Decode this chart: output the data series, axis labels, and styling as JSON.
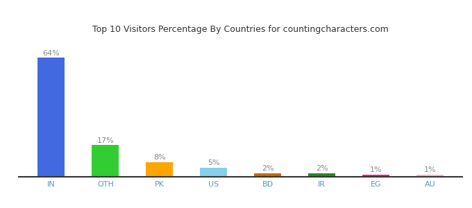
{
  "categories": [
    "IN",
    "OTH",
    "PK",
    "US",
    "BD",
    "IR",
    "EG",
    "AU"
  ],
  "values": [
    64,
    17,
    8,
    5,
    2,
    2,
    1,
    1
  ],
  "labels": [
    "64%",
    "17%",
    "8%",
    "5%",
    "2%",
    "2%",
    "1%",
    "1%"
  ],
  "bar_colors": [
    "#4169e1",
    "#32cd32",
    "#ffa500",
    "#87ceeb",
    "#cd6600",
    "#228b22",
    "#ff1493",
    "#ffb6c1"
  ],
  "title": "Top 10 Visitors Percentage By Countries for countingcharacters.com",
  "title_fontsize": 9,
  "label_fontsize": 8,
  "tick_fontsize": 8,
  "ylim": [
    0,
    75
  ],
  "background_color": "#ffffff",
  "bar_width": 0.5,
  "label_color": "#888888",
  "tick_color": "#5599bb",
  "spine_color": "#333333"
}
